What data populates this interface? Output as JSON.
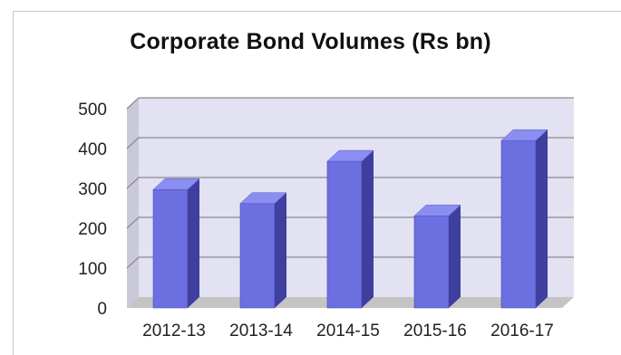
{
  "chart_data": {
    "type": "bar",
    "title": "Corporate Bond Volumes (Rs bn)",
    "categories": [
      "2012-13",
      "2013-14",
      "2014-15",
      "2015-16",
      "2016-17"
    ],
    "values": [
      297,
      262,
      368,
      231,
      420
    ],
    "yticks": [
      0,
      100,
      200,
      300,
      400,
      500
    ],
    "ylim": [
      0,
      500
    ],
    "xlabel": "",
    "ylabel": "",
    "grid": true,
    "style": "3d-column",
    "colors": {
      "bar_front": "#6b6fe0",
      "bar_side": "#3e3f9e",
      "bar_top": "#8a8ef0",
      "plot_back": "#e2e2f2",
      "floor": "#c4c4c4",
      "gridline": "#8c8c8c"
    }
  }
}
